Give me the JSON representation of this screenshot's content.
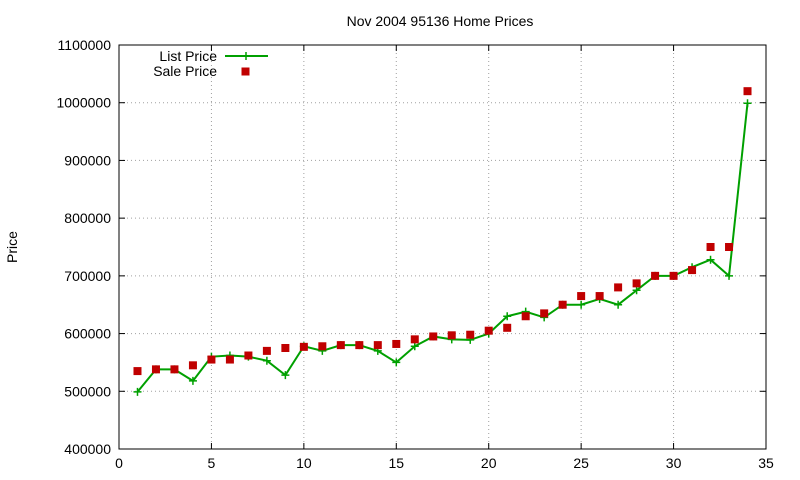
{
  "chart_data": {
    "type": "line",
    "title": "Nov 2004 95136 Home Prices",
    "xlabel": "",
    "ylabel": "Price",
    "xlim": [
      0,
      35
    ],
    "ylim": [
      400000,
      1100000
    ],
    "xticks": [
      0,
      5,
      10,
      15,
      20,
      25,
      30,
      35
    ],
    "yticks": [
      400000,
      500000,
      600000,
      700000,
      800000,
      900000,
      1000000,
      1100000
    ],
    "grid": true,
    "legend_position": "top-left",
    "x": [
      1,
      2,
      3,
      4,
      5,
      6,
      7,
      8,
      9,
      10,
      11,
      12,
      13,
      14,
      15,
      16,
      17,
      18,
      19,
      20,
      21,
      22,
      23,
      24,
      25,
      26,
      27,
      28,
      29,
      30,
      31,
      32,
      33,
      34
    ],
    "series": [
      {
        "name": "List Price",
        "style": "line-plus",
        "color": "#00a000",
        "values": [
          499000,
          538000,
          538000,
          518000,
          560000,
          562000,
          560000,
          553000,
          528000,
          578000,
          570000,
          580000,
          580000,
          570000,
          550000,
          578000,
          595000,
          590000,
          589000,
          600000,
          630000,
          638000,
          628000,
          650000,
          650000,
          660000,
          650000,
          675000,
          700000,
          700000,
          715000,
          728000,
          700000,
          999000
        ]
      },
      {
        "name": "Sale Price",
        "style": "square",
        "color": "#c00000",
        "values": [
          535000,
          538000,
          538000,
          545000,
          555000,
          555000,
          562000,
          570000,
          575000,
          577000,
          578000,
          580000,
          580000,
          580000,
          582000,
          590000,
          595000,
          597000,
          598000,
          605000,
          610000,
          630000,
          635000,
          650000,
          665000,
          665000,
          680000,
          687000,
          700000,
          700000,
          710000,
          750000,
          750000,
          1020000
        ]
      }
    ]
  }
}
